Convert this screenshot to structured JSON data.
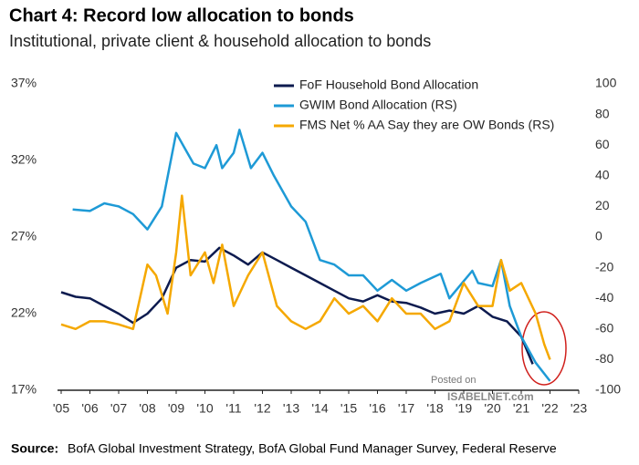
{
  "chart_data": {
    "type": "line",
    "title": "Chart 4: Record low allocation to bonds",
    "subtitle": "Institutional, private client & household allocation to bonds",
    "source_label": "Source:",
    "source": "BofA Global Investment Strategy, BofA Global Fund Manager Survey, Federal Reserve",
    "watermark": [
      "Posted on",
      "ISABELNET.com"
    ],
    "legend": "top-center",
    "xlim": [
      2005,
      2023
    ],
    "xticks": [
      {
        "value": 2005,
        "label": "'05"
      },
      {
        "value": 2006,
        "label": "'06"
      },
      {
        "value": 2007,
        "label": "'07"
      },
      {
        "value": 2008,
        "label": "'08"
      },
      {
        "value": 2009,
        "label": "'09"
      },
      {
        "value": 2010,
        "label": "'10"
      },
      {
        "value": 2011,
        "label": "'11"
      },
      {
        "value": 2012,
        "label": "'12"
      },
      {
        "value": 2013,
        "label": "'13"
      },
      {
        "value": 2014,
        "label": "'14"
      },
      {
        "value": 2015,
        "label": "'15"
      },
      {
        "value": 2016,
        "label": "'16"
      },
      {
        "value": 2017,
        "label": "'17"
      },
      {
        "value": 2018,
        "label": "'18"
      },
      {
        "value": 2019,
        "label": "'19"
      },
      {
        "value": 2020,
        "label": "'20"
      },
      {
        "value": 2021,
        "label": "'21"
      },
      {
        "value": 2022,
        "label": "'22"
      },
      {
        "value": 2023,
        "label": "'23"
      }
    ],
    "ylim": [
      17,
      37
    ],
    "yticks": [
      {
        "value": 17,
        "label": "17%"
      },
      {
        "value": 22,
        "label": "22%"
      },
      {
        "value": 27,
        "label": "27%"
      },
      {
        "value": 32,
        "label": "32%"
      },
      {
        "value": 37,
        "label": "37%"
      }
    ],
    "y2lim": [
      -100,
      100
    ],
    "y2ticks": [
      -100,
      -80,
      -60,
      -40,
      -20,
      0,
      20,
      40,
      60,
      80,
      100
    ],
    "series": [
      {
        "name": "FoF Household Bond Allocation",
        "color": "#0d1b4f",
        "axis": "y",
        "x": [
          2005,
          2005.5,
          2006,
          2006.5,
          2007,
          2007.5,
          2008,
          2008.5,
          2009,
          2009.5,
          2010,
          2010.5,
          2011,
          2011.5,
          2012,
          2012.5,
          2013,
          2013.5,
          2014,
          2014.5,
          2015,
          2015.5,
          2016,
          2016.5,
          2017,
          2017.5,
          2018,
          2018.5,
          2019,
          2019.5,
          2020,
          2020.5,
          2021,
          2021.4
        ],
        "values": [
          23.4,
          23.1,
          23.0,
          22.5,
          22.0,
          21.4,
          22.0,
          23.0,
          25.0,
          25.5,
          25.4,
          26.3,
          25.8,
          25.2,
          26.0,
          25.5,
          25.0,
          24.5,
          24.0,
          23.5,
          23.0,
          22.8,
          23.2,
          22.8,
          22.7,
          22.4,
          22.0,
          22.2,
          22.0,
          22.5,
          21.8,
          21.5,
          20.5,
          18.7
        ]
      },
      {
        "name": "GWIM Bond Allocation (RS)",
        "color": "#1e9ad6",
        "axis": "y2",
        "x": [
          2005.4,
          2006,
          2006.5,
          2007,
          2007.5,
          2008,
          2008.5,
          2009,
          2009.3,
          2009.6,
          2010,
          2010.4,
          2010.6,
          2011,
          2011.2,
          2011.6,
          2012,
          2012.4,
          2013,
          2013.5,
          2014,
          2014.5,
          2015,
          2015.5,
          2016,
          2016.5,
          2017,
          2017.5,
          2018.2,
          2018.5,
          2019.3,
          2019.5,
          2020,
          2020.3,
          2020.6,
          2021,
          2021.5,
          2022
        ],
        "values": [
          18,
          17,
          22,
          20,
          15,
          5,
          20,
          68,
          58,
          48,
          45,
          60,
          45,
          55,
          70,
          45,
          55,
          40,
          20,
          10,
          -15,
          -18,
          -25,
          -25,
          -35,
          -28,
          -35,
          -30,
          -24,
          -40,
          -22,
          -30,
          -32,
          -15,
          -45,
          -65,
          -82,
          -94
        ]
      },
      {
        "name": "FMS Net % AA Say they are OW Bonds (RS)",
        "color": "#f5a800",
        "axis": "y2",
        "x": [
          2005,
          2005.5,
          2006,
          2006.5,
          2007,
          2007.5,
          2008,
          2008.3,
          2008.7,
          2009,
          2009.2,
          2009.5,
          2010,
          2010.3,
          2010.6,
          2011,
          2011.5,
          2012,
          2012.5,
          2013,
          2013.5,
          2014,
          2014.5,
          2015,
          2015.5,
          2016,
          2016.5,
          2017,
          2017.5,
          2018,
          2018.5,
          2019,
          2019.5,
          2020,
          2020.3,
          2020.6,
          2021,
          2021.5,
          2021.8,
          2022
        ],
        "values": [
          -57,
          -60,
          -55,
          -55,
          -57,
          -60,
          -18,
          -25,
          -50,
          -10,
          27,
          -25,
          -10,
          -30,
          -5,
          -45,
          -25,
          -10,
          -45,
          -55,
          -60,
          -55,
          -40,
          -50,
          -45,
          -55,
          -40,
          -50,
          -50,
          -60,
          -55,
          -30,
          -45,
          -45,
          -15,
          -35,
          -30,
          -50,
          -70,
          -80
        ]
      }
    ]
  }
}
